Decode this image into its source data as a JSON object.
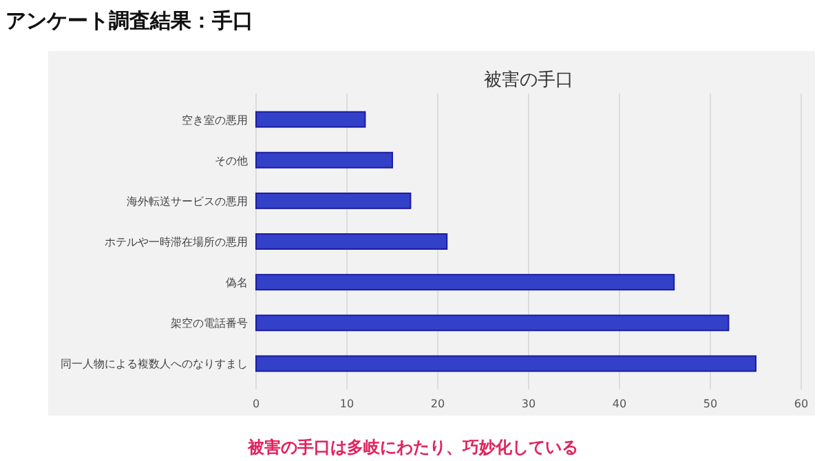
{
  "chart_data": {
    "type": "bar",
    "orientation": "horizontal",
    "title": "アンケート調査結果：手口",
    "subtitle": "被害の手口",
    "categories": [
      "空き室の悪用",
      "その他",
      "海外転送サービスの悪用",
      "ホテルや一時滞在場所の悪用",
      "偽名",
      "架空の電話番号",
      "同一人物による複数人へのなりすまし"
    ],
    "values": [
      12,
      15,
      17,
      21,
      46,
      52,
      55
    ],
    "color": "#3340c8",
    "xlim": [
      0,
      60
    ],
    "xticks": [
      0,
      10,
      20,
      30,
      40,
      50,
      60
    ],
    "grid": "x",
    "annotations": [
      "被害の手口は多岐にわたり、巧妙化している"
    ]
  }
}
